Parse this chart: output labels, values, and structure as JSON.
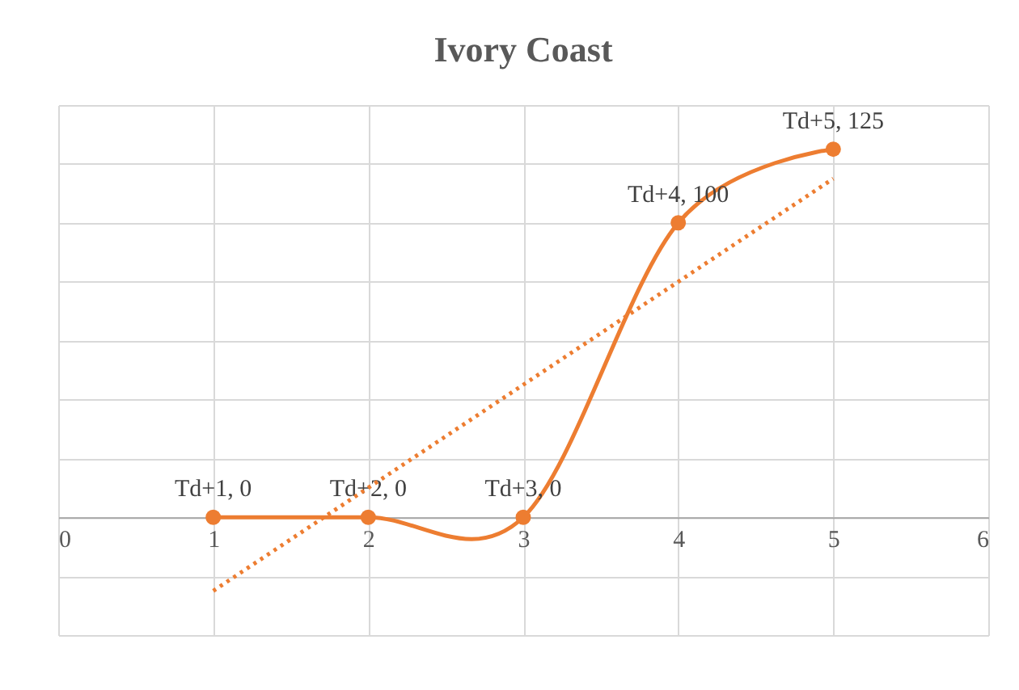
{
  "chart_data": {
    "type": "line",
    "title": "Ivory Coast",
    "x": [
      1,
      2,
      3,
      4,
      5
    ],
    "series": [
      {
        "color": "#ed7d31",
        "values": [
          0,
          0,
          0,
          100,
          125
        ],
        "marker": "circle",
        "value_labels": [
          "Td+1, 0",
          "Td+2, 0",
          "Td+3, 0",
          "Td+4, 100",
          "Td+5, 125"
        ]
      },
      {
        "type": "line",
        "x": [
          1,
          5
        ],
        "color": "#ed7d31",
        "values": [
          -25,
          115
        ],
        "marker": "none",
        "line_style": "dotted"
      }
    ],
    "xlim": [
      0,
      6
    ],
    "xticks": [
      0,
      1,
      2,
      3,
      4,
      5,
      6
    ],
    "ylim": [
      -40,
      140
    ],
    "yticks": [
      {
        "value": -40,
        "label": null
      },
      {
        "value": -20,
        "label": null
      },
      {
        "value": 0,
        "label": null
      },
      {
        "value": 20,
        "label": null
      },
      {
        "value": 40,
        "label": null
      },
      {
        "value": 60,
        "label": null
      },
      {
        "value": 80,
        "label": null
      },
      {
        "value": 100,
        "label": null
      },
      {
        "value": 120,
        "label": null
      },
      {
        "value": 140,
        "label": null
      }
    ],
    "grid": true,
    "tick_labels": "x"
  }
}
